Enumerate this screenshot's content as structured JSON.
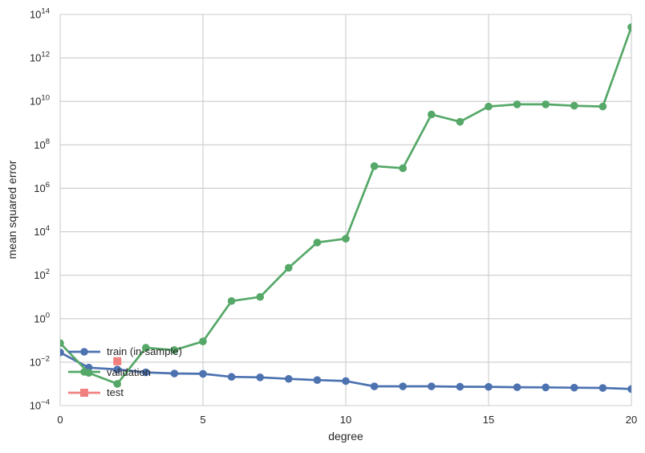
{
  "chart_data": {
    "type": "line",
    "title": "",
    "xlabel": "degree",
    "ylabel": "mean squared error",
    "x_axis_scale": "linear",
    "y_axis_scale": "log",
    "xlim": [
      0,
      20
    ],
    "y_min_exp": -4,
    "y_max_exp": 14,
    "x_ticks": [
      0,
      5,
      10,
      15,
      20
    ],
    "y_tick_exponents": [
      14,
      12,
      10,
      8,
      6,
      4,
      2,
      0,
      -2,
      -4
    ],
    "grid": true,
    "grid_color": "#cccccc",
    "text_color": "#262626",
    "background_color": "#ffffff",
    "legend_position": "lower-left-inside",
    "series": [
      {
        "name": "train (in-sample)",
        "color": "#4c72b0",
        "marker": "circle",
        "x": [
          0,
          1,
          2,
          3,
          4,
          5,
          6,
          7,
          8,
          9,
          10,
          11,
          12,
          13,
          14,
          15,
          16,
          17,
          18,
          19,
          20
        ],
        "values": [
          0.028,
          0.0056,
          0.0046,
          0.0034,
          0.003,
          0.0029,
          0.0021,
          0.002,
          0.0017,
          0.0015,
          0.00135,
          0.00077,
          0.00077,
          0.00077,
          0.00074,
          0.00073,
          0.0007,
          0.00069,
          0.00067,
          0.00065,
          0.00058
        ]
      },
      {
        "name": "validation",
        "color": "#55a868",
        "marker": "circle",
        "x": [
          0,
          1,
          2,
          3,
          4,
          5,
          6,
          7,
          8,
          9,
          10,
          11,
          12,
          13,
          14,
          15,
          16,
          17,
          18,
          19,
          20
        ],
        "values": [
          0.075,
          0.0032,
          0.001,
          0.046,
          0.036,
          0.09,
          6.5,
          10,
          220,
          3200,
          4800,
          10500000.0,
          8400000.0,
          2500000000.0,
          1150000000.0,
          5800000000.0,
          7300000000.0,
          7300000000.0,
          6300000000.0,
          5800000000.0,
          26000000000000.0
        ]
      },
      {
        "name": "test",
        "color": "#f08080",
        "marker": "square",
        "x": [
          2
        ],
        "values": [
          0.011
        ]
      }
    ]
  }
}
